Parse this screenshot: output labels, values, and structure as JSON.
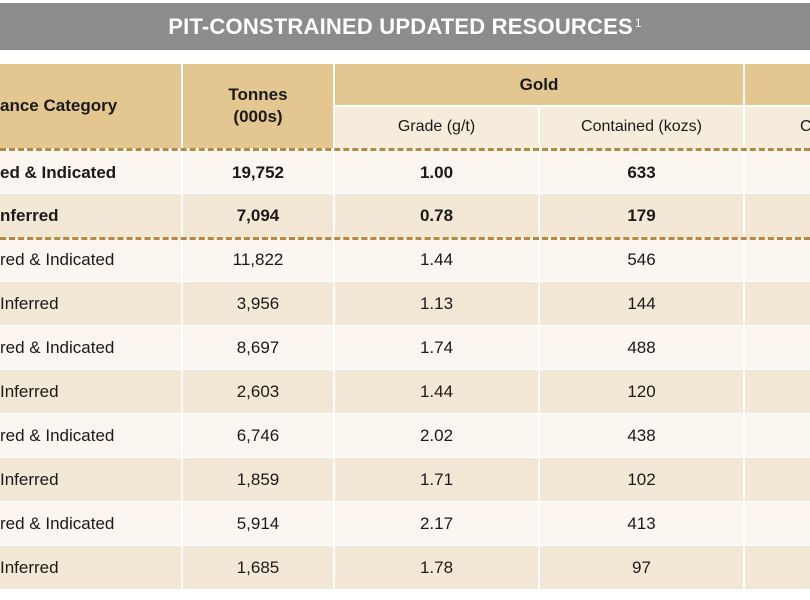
{
  "title": {
    "text": "PIT-CONSTRAINED UPDATED RESOURCES",
    "superscript": "1"
  },
  "headers": {
    "category": "ance Category",
    "tonnes": "Tonnes",
    "tonnes_unit": "(000s)",
    "gold": "Gold",
    "grade": "Grade (g/t)",
    "contained": "Contained (kozs)",
    "next_col": "C"
  },
  "rows": [
    {
      "category": "ed & Indicated",
      "tonnes": "19,752",
      "grade": "1.00",
      "contained": "633",
      "bold": true
    },
    {
      "category": "nferred",
      "tonnes": "7,094",
      "grade": "0.78",
      "contained": "179",
      "bold": true
    },
    {
      "category": "red & Indicated",
      "tonnes": "11,822",
      "grade": "1.44",
      "contained": "546",
      "bold": false
    },
    {
      "category": "Inferred",
      "tonnes": "3,956",
      "grade": "1.13",
      "contained": "144",
      "bold": false
    },
    {
      "category": "red & Indicated",
      "tonnes": "8,697",
      "grade": "1.74",
      "contained": "488",
      "bold": false
    },
    {
      "category": "Inferred",
      "tonnes": "2,603",
      "grade": "1.44",
      "contained": "120",
      "bold": false
    },
    {
      "category": "red & Indicated",
      "tonnes": "6,746",
      "grade": "2.02",
      "contained": "438",
      "bold": false
    },
    {
      "category": "Inferred",
      "tonnes": "1,859",
      "grade": "1.71",
      "contained": "102",
      "bold": false
    },
    {
      "category": "red & Indicated",
      "tonnes": "5,914",
      "grade": "2.17",
      "contained": "413",
      "bold": false
    },
    {
      "category": "Inferred",
      "tonnes": "1,685",
      "grade": "1.78",
      "contained": "97",
      "bold": false
    }
  ],
  "colors": {
    "title_bar": "#8c8c8c",
    "header": "#e3c690",
    "subheader": "#f6ecdc",
    "row_light": "#fbf6ef",
    "row_dark": "#f3e7d6",
    "dashed_line": "#b8893c"
  }
}
